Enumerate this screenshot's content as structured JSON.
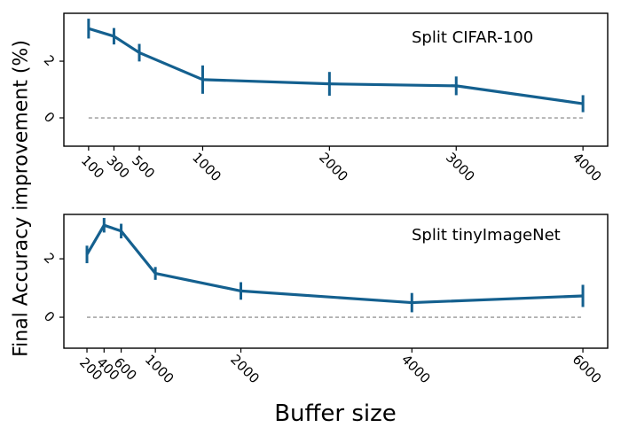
{
  "figure": {
    "ylabel": "Final Accuracy improvement (%)",
    "xlabel": "Buffer size",
    "line_color": "#14608f",
    "zero_line_color": "#7f7f7f",
    "axis_color": "#000000",
    "background_color": "#ffffff"
  },
  "chart_data": [
    {
      "type": "line",
      "title": "Split CIFAR-100",
      "x": [
        100,
        300,
        500,
        1000,
        2000,
        3000,
        4000
      ],
      "y": [
        3.15,
        2.88,
        2.3,
        1.35,
        1.2,
        1.13,
        0.5
      ],
      "yerr": [
        0.35,
        0.29,
        0.31,
        0.5,
        0.42,
        0.33,
        0.3
      ],
      "x_tick_labels": [
        "100",
        "300",
        "500",
        "1000",
        "2000",
        "3000",
        "4000"
      ],
      "yticks": [
        0,
        2
      ],
      "y_tick_labels": [
        "0",
        "2"
      ],
      "xlim": [
        -95,
        4195
      ],
      "ylim": [
        -1.0,
        3.69
      ],
      "grid": false,
      "legend": "none",
      "zero_baseline_dashed": true
    },
    {
      "type": "line",
      "title": "Split tinyImageNet",
      "x": [
        200,
        400,
        600,
        1000,
        2000,
        4000,
        6000
      ],
      "y": [
        2.15,
        3.15,
        2.95,
        1.5,
        0.9,
        0.5,
        0.73
      ],
      "yerr": [
        0.3,
        0.25,
        0.25,
        0.22,
        0.3,
        0.33,
        0.38
      ],
      "x_tick_labels": [
        "200",
        "400",
        "600",
        "1000",
        "2000",
        "4000",
        "6000"
      ],
      "yticks": [
        0,
        2
      ],
      "y_tick_labels": [
        "0",
        "2"
      ],
      "xlim": [
        -70,
        6290
      ],
      "ylim": [
        -1.06,
        3.52
      ],
      "grid": false,
      "legend": "none",
      "zero_baseline_dashed": true
    }
  ]
}
